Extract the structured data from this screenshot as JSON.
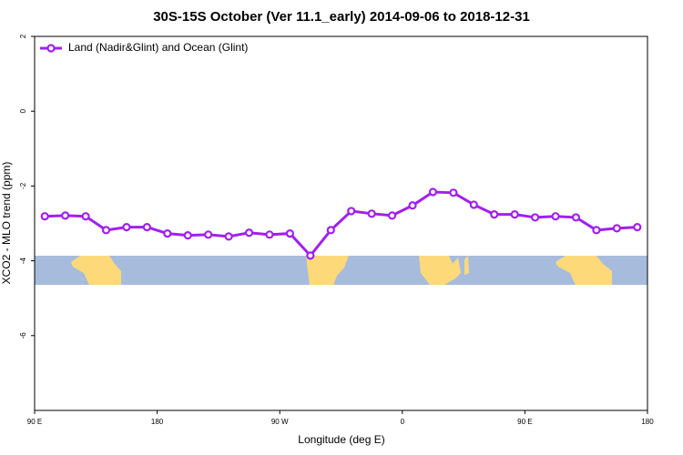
{
  "chart_data": {
    "type": "line",
    "title": "30S-15S October (Ver 11.1_early)   2014-09-06 to 2018-12-31",
    "x_label": "Longitude (deg E)",
    "y_label": "XCO2 - MLO trend (ppm)",
    "x": [
      97.5,
      112.5,
      127.5,
      142.5,
      157.5,
      172.5,
      187.5,
      202.5,
      217.5,
      232.5,
      247.5,
      262.5,
      277.5,
      292.5,
      307.5,
      322.5,
      337.5,
      352.5,
      367.5,
      382.5,
      397.5,
      412.5,
      427.5,
      442.5,
      457.5,
      472.5,
      487.5,
      502.5,
      517.5,
      532.5
    ],
    "series": [
      {
        "name": "Land (Nadir&Glint) and Ocean (Glint)",
        "color": "#a020f0",
        "values": [
          -2.81,
          -2.79,
          -2.81,
          -3.18,
          -3.1,
          -3.1,
          -3.27,
          -3.32,
          -3.3,
          -3.35,
          -3.25,
          -3.3,
          -3.27,
          -3.86,
          -3.18,
          -2.67,
          -2.74,
          -2.79,
          -2.52,
          -2.16,
          -2.18,
          -2.5,
          -2.76,
          -2.76,
          -2.84,
          -2.81,
          -2.84,
          -3.18,
          -3.13,
          -3.1
        ]
      }
    ],
    "xlim": [
      90,
      540
    ],
    "xticks": [
      {
        "value": 90,
        "label": "90 E"
      },
      180,
      {
        "value": 270,
        "label": "90 W"
      },
      {
        "value": 360,
        "label": "0"
      },
      {
        "value": 450,
        "label": "90 E"
      },
      {
        "value": 540,
        "label": "180"
      }
    ],
    "ylim": [
      -8,
      2
    ],
    "yticks": [
      -6,
      -4,
      -2,
      0,
      2
    ],
    "legend": "top-left",
    "grid": false
  }
}
